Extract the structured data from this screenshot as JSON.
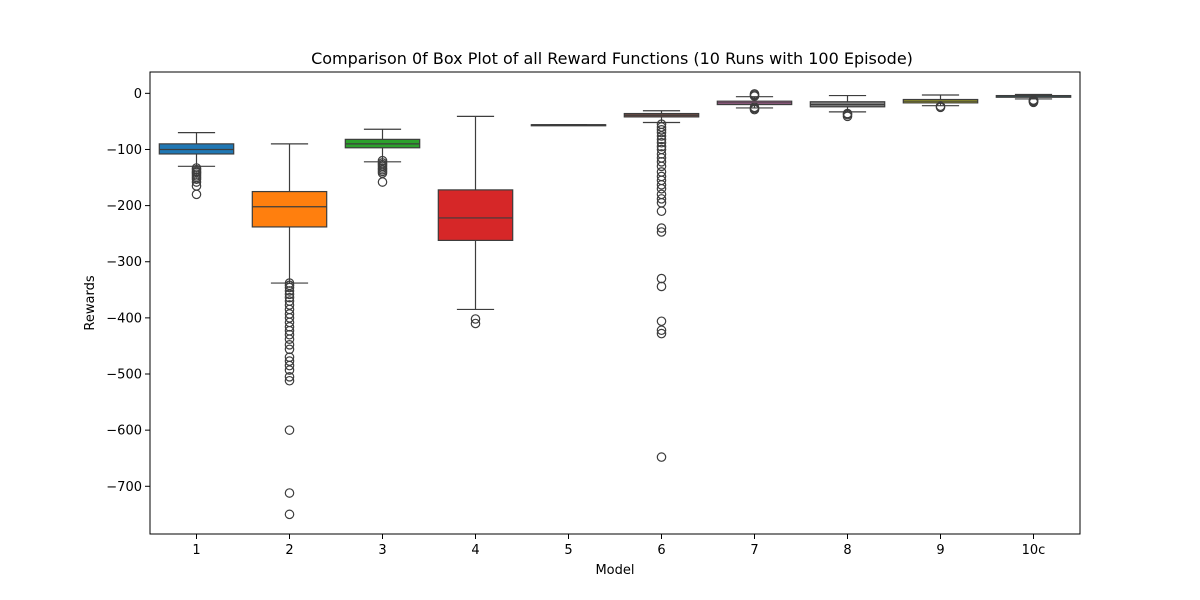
{
  "chart_data": {
    "type": "box",
    "title": "Comparison 0f Box Plot of all Reward Functions (10 Runs with 100 Episode)",
    "xlabel": "Model",
    "ylabel": "Rewards",
    "ylim": [
      -785,
      38
    ],
    "yticks": [
      0,
      -100,
      -200,
      -300,
      -400,
      -500,
      -600,
      -700
    ],
    "ytick_labels": [
      "0",
      "−100",
      "−200",
      "−300",
      "−400",
      "−500",
      "−600",
      "−700"
    ],
    "grid": false,
    "categories": [
      "1",
      "2",
      "3",
      "4",
      "5",
      "6",
      "7",
      "8",
      "9",
      "10c"
    ],
    "boxes": [
      {
        "category": "1",
        "color": "#1f77b4",
        "whisker_low": -130,
        "q1": -108,
        "median": -100,
        "q3": -90,
        "whisker_high": -70,
        "outliers": [
          -133,
          -136,
          -139,
          -141,
          -144,
          -147,
          -150,
          -153,
          -158,
          -165,
          -180
        ]
      },
      {
        "category": "2",
        "color": "#ff7f0e",
        "whisker_low": -338,
        "q1": -238,
        "median": -202,
        "q3": -175,
        "whisker_high": -90,
        "outliers": [
          -338,
          -342,
          -346,
          -352,
          -358,
          -364,
          -370,
          -377,
          -385,
          -393,
          -400,
          -408,
          -416,
          -423,
          -430,
          -438,
          -448,
          -456,
          -470,
          -477,
          -485,
          -493,
          -505,
          -512,
          -600,
          -712,
          -750
        ]
      },
      {
        "category": "3",
        "color": "#2ca02c",
        "whisker_low": -122,
        "q1": -97,
        "median": -90,
        "q3": -82,
        "whisker_high": -64,
        "outliers": [
          -120,
          -124,
          -127,
          -130,
          -133,
          -136,
          -139,
          -142,
          -158
        ]
      },
      {
        "category": "4",
        "color": "#d62728",
        "whisker_low": -385,
        "q1": -262,
        "median": -222,
        "q3": -172,
        "whisker_high": -41,
        "outliers": [
          -402,
          -410
        ]
      },
      {
        "category": "5",
        "color": "#9467bd",
        "whisker_low": -56,
        "q1": -56,
        "median": -56,
        "q3": -56,
        "whisker_high": -56,
        "outliers": []
      },
      {
        "category": "6",
        "color": "#8c564b",
        "whisker_low": -52,
        "q1": -42,
        "median": -39,
        "q3": -36,
        "whisker_high": -31,
        "outliers": [
          -55,
          -60,
          -65,
          -70,
          -76,
          -82,
          -88,
          -95,
          -100,
          -108,
          -115,
          -122,
          -130,
          -140,
          -148,
          -155,
          -163,
          -170,
          -180,
          -188,
          -195,
          -210,
          -240,
          -247,
          -330,
          -344,
          -406,
          -422,
          -428,
          -648
        ]
      },
      {
        "category": "7",
        "color": "#e377c2",
        "whisker_low": -26,
        "q1": -20,
        "median": -17,
        "q3": -14,
        "whisker_high": -6,
        "outliers": [
          -1,
          -3,
          -5,
          -25,
          -27,
          -29
        ]
      },
      {
        "category": "8",
        "color": "#7f7f7f",
        "whisker_low": -33,
        "q1": -24,
        "median": -20,
        "q3": -15,
        "whisker_high": -4,
        "outliers": [
          -36,
          -38,
          -41
        ]
      },
      {
        "category": "9",
        "color": "#bcbd22",
        "whisker_low": -22,
        "q1": -17,
        "median": -14,
        "q3": -11,
        "whisker_high": -3,
        "outliers": [
          -23,
          -25
        ]
      },
      {
        "category": "10c",
        "color": "#17becf",
        "whisker_low": -10,
        "q1": -7,
        "median": -6,
        "q3": -4,
        "whisker_high": -2,
        "outliers": [
          -12,
          -13,
          -14,
          -15,
          -16
        ]
      }
    ]
  }
}
